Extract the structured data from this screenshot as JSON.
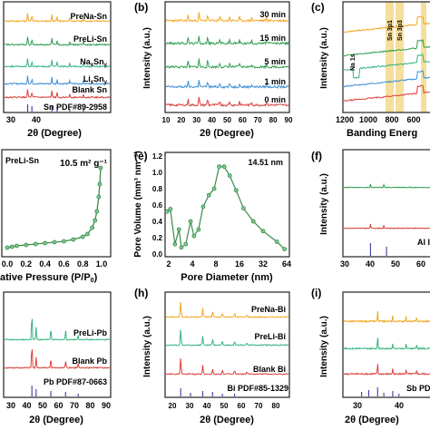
{
  "colors": {
    "orange": "#f5a623",
    "green": "#2e9e4f",
    "teal": "#34b47e",
    "blue": "#3d8fd6",
    "red": "#d9403a",
    "ref": "#3a3aa0",
    "band": "#f3d98b",
    "pore": "#3a8a4a",
    "dark": "#222222"
  },
  "chart_data": [
    {
      "panel": "a",
      "type": "line",
      "xlabel": "2θ (Degree)",
      "x_ticks": [
        "30",
        "40"
      ],
      "series": [
        {
          "name": "PreNa-Sn"
        },
        {
          "name": "PreLi-Sn"
        },
        {
          "name": "Na",
          "sub": "x",
          "after": "Sn",
          "sub2": "y"
        },
        {
          "name": "Li",
          "sub": "x",
          "after": "Sn",
          "sub2": "y"
        },
        {
          "name": "Blank Sn"
        },
        {
          "name": "Sn PDF#89-2958"
        }
      ]
    },
    {
      "panel": "b",
      "type": "line",
      "label": "(b)",
      "xlabel": "2θ (Degree)",
      "ylabel": "Intensity (a.u.)",
      "xlim": [
        10,
        90
      ],
      "x_ticks": [
        "10",
        "20",
        "30",
        "40",
        "50",
        "60",
        "70",
        "80",
        "90"
      ],
      "series": [
        {
          "name": "30 min"
        },
        {
          "name": "15 min"
        },
        {
          "name": "5 min"
        },
        {
          "name": "1 min"
        },
        {
          "name": "0 min"
        }
      ]
    },
    {
      "panel": "c",
      "type": "line",
      "label": "(c)",
      "xlabel": "Banding Energ",
      "ylabel": "Intensity (a.u.)",
      "x_ticks": [
        "1200",
        "1000",
        "800",
        "600",
        "400"
      ],
      "annotations": [
        "Sn 3p1",
        "Sn 3p3",
        "Na 1s"
      ]
    },
    {
      "panel": "d",
      "type": "line",
      "series_label": "PreLi-Sn",
      "annotation": "10.5 m² g⁻¹",
      "xlabel": "ative Pressure (P/P",
      "xlabel_sub": "0",
      "xlabel_tail": ")",
      "xlim": [
        0,
        1
      ],
      "x_ticks": [
        "0.0",
        "0.2",
        "0.4",
        "0.6",
        "0.8",
        "1.0"
      ],
      "x": [
        0,
        0.05,
        0.1,
        0.2,
        0.3,
        0.4,
        0.5,
        0.6,
        0.7,
        0.8,
        0.85,
        0.9,
        0.93,
        0.95,
        0.97,
        0.98,
        0.99
      ],
      "y": [
        0.02,
        0.03,
        0.04,
        0.05,
        0.06,
        0.07,
        0.08,
        0.09,
        0.11,
        0.14,
        0.17,
        0.24,
        0.32,
        0.42,
        0.58,
        0.72,
        0.9
      ]
    },
    {
      "panel": "e",
      "type": "line",
      "label": "(e)",
      "annotation": "14.51 nm",
      "xlabel": "Pore Diameter (nm)",
      "ylabel": "Pore Volume (mm³ nm⁻¹)",
      "xscale": "log2",
      "x_ticks": [
        "2",
        "4",
        "8",
        "16",
        "32",
        "64"
      ],
      "y_ticks": [
        "0.0",
        "0.2",
        "0.4",
        "0.6",
        "0.8",
        "1.0",
        "1.2"
      ],
      "ylim": [
        0,
        1.2
      ],
      "x": [
        1.9,
        2.1,
        2.4,
        2.7,
        2.9,
        3.3,
        3.8,
        4.2,
        4.8,
        5.5,
        6.5,
        7.6,
        8.8,
        10.2,
        12,
        14.5,
        18,
        24,
        32,
        48,
        60
      ],
      "y": [
        0.52,
        0.55,
        0.12,
        0.3,
        0.08,
        0.12,
        0.4,
        0.22,
        0.3,
        0.58,
        0.72,
        0.8,
        1.07,
        1.07,
        0.96,
        0.78,
        0.56,
        0.4,
        0.28,
        0.15,
        0.06
      ]
    },
    {
      "panel": "f",
      "type": "line",
      "label": "(f)",
      "ylabel": "Intensity (a.u.)",
      "xlabel": "2θ (Degree)",
      "x_ticks": [
        "30",
        "40",
        "50",
        "60"
      ],
      "ref_label": "Al I"
    },
    {
      "panel": "g",
      "type": "line",
      "xlabel": "2θ (Degree)",
      "x_ticks": [
        "30",
        "40",
        "50",
        "60",
        "70",
        "80",
        "90"
      ],
      "series": [
        {
          "name": "PreLi-Pb"
        },
        {
          "name": "Blank Pb"
        },
        {
          "name": "Pb PDF#87-0663"
        }
      ]
    },
    {
      "panel": "h",
      "type": "line",
      "label": "(h)",
      "xlabel": "2θ (Degree)",
      "ylabel": "Intensity (a.u.)",
      "x_ticks": [
        "20",
        "30",
        "40",
        "50",
        "60",
        "70",
        "80"
      ],
      "series": [
        {
          "name": "PreNa-Bi"
        },
        {
          "name": "PreLi-Bi"
        },
        {
          "name": "Blank Bi"
        },
        {
          "name": "Bi PDF#85-1329"
        }
      ]
    },
    {
      "panel": "i",
      "type": "line",
      "label": "(i)",
      "ylabel": "Intensity (a.u.)",
      "xlabel": "2θ (Degree)",
      "x_ticks": [
        "30",
        "40"
      ],
      "ref_label": "Sb PD"
    }
  ]
}
